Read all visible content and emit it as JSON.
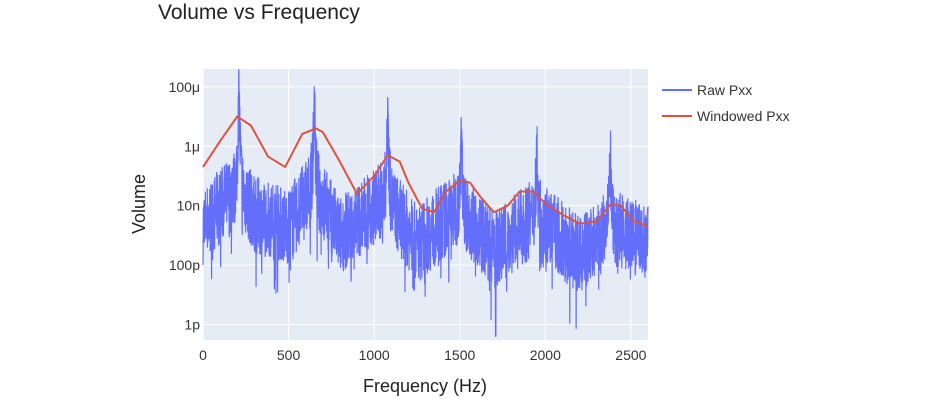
{
  "chart_data": {
    "type": "line",
    "title": "Volume vs Frequency",
    "xlabel": "Frequency (Hz)",
    "ylabel": "Volume",
    "xlim": [
      0,
      2600
    ],
    "ylim": [
      3e-13,
      0.0004
    ],
    "yscale": "log",
    "grid": true,
    "legend_position": "top-right (outside plot)",
    "xticks": [
      0,
      500,
      1000,
      1500,
      2000,
      2500
    ],
    "xtick_labels": [
      "0",
      "500",
      "1000",
      "1500",
      "2000",
      "2500"
    ],
    "yticks": [
      1e-12,
      1e-10,
      1e-08,
      1e-06,
      0.0001
    ],
    "ytick_labels": [
      "1p",
      "100p",
      "10n",
      "1μ",
      "100μ"
    ],
    "colors": {
      "raw": "#636efa",
      "windowed": "#e0523f",
      "plot_bg": "#e5ecf6",
      "grid": "#ffffff"
    },
    "series": [
      {
        "name": "Raw Pxx",
        "style": "dense noisy spectrum with peaks",
        "noise_floor": [
          [
            0,
            2e-09
          ],
          [
            150,
            2e-08
          ],
          [
            210,
            5e-08
          ],
          [
            300,
            5e-09
          ],
          [
            500,
            2e-09
          ],
          [
            650,
            5e-08
          ],
          [
            800,
            1e-09
          ],
          [
            1070,
            2e-08
          ],
          [
            1250,
            5e-10
          ],
          [
            1500,
            1e-08
          ],
          [
            1700,
            3e-10
          ],
          [
            1950,
            5e-09
          ],
          [
            2200,
            2e-10
          ],
          [
            2380,
            2e-09
          ],
          [
            2600,
            5e-10
          ]
        ],
        "peaks": [
          [
            210,
            0.0003
          ],
          [
            650,
            0.0001
          ],
          [
            1080,
            4e-05
          ],
          [
            1510,
            3e-06
          ],
          [
            1950,
            1.5e-06
          ],
          [
            2380,
            5e-07
          ]
        ],
        "minimum": [
          1710,
          4e-13
        ]
      },
      {
        "name": "Windowed Pxx",
        "x": [
          0,
          100,
          200,
          280,
          380,
          480,
          580,
          660,
          700,
          800,
          900,
          1000,
          1080,
          1150,
          1200,
          1280,
          1350,
          1420,
          1500,
          1560,
          1620,
          1700,
          1780,
          1850,
          1930,
          2000,
          2100,
          2200,
          2300,
          2380,
          2440,
          2520,
          2600
        ],
        "y": [
          2e-07,
          1.5e-06,
          1e-05,
          5e-06,
          4.5e-07,
          2e-07,
          2.6e-06,
          4e-06,
          3e-06,
          3e-07,
          2.5e-08,
          1e-07,
          5e-07,
          3e-07,
          6e-08,
          8e-09,
          6e-09,
          3e-08,
          7e-08,
          6e-08,
          2e-08,
          6e-09,
          1e-08,
          3e-08,
          3e-08,
          1.2e-08,
          5e-09,
          2.5e-09,
          3e-09,
          1.1e-08,
          1e-08,
          3e-09,
          2e-09
        ]
      }
    ]
  }
}
